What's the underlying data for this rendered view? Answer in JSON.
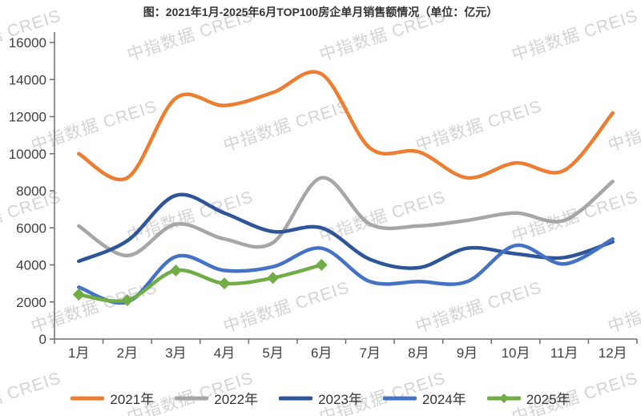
{
  "watermark_text": "中指数据 CREIS",
  "chart_data": {
    "type": "line",
    "title": "图：2021年1月-2025年6月TOP100房企单月销售额情况（单位：亿元）",
    "unit": "亿元",
    "categories": [
      "1月",
      "2月",
      "3月",
      "4月",
      "5月",
      "6月",
      "7月",
      "8月",
      "9月",
      "10月",
      "11月",
      "12月"
    ],
    "ylim": [
      0,
      16000
    ],
    "ytick_step": 2000,
    "grid": false,
    "smooth": true,
    "legend_position": "bottom",
    "series": [
      {
        "name": "2021年",
        "color": "#ED7D31",
        "marker": "none",
        "values": [
          10000,
          8700,
          13000,
          12600,
          13300,
          14300,
          10300,
          10100,
          8700,
          9500,
          9100,
          12200
        ]
      },
      {
        "name": "2022年",
        "color": "#A6A6A6",
        "marker": "none",
        "values": [
          6100,
          4500,
          6200,
          5400,
          5200,
          8700,
          6200,
          6100,
          6400,
          6800,
          6400,
          8500
        ]
      },
      {
        "name": "2023年",
        "color": "#2E5597",
        "marker": "none",
        "values": [
          4200,
          5300,
          7750,
          6800,
          5800,
          6000,
          4300,
          3850,
          4900,
          4600,
          4400,
          5250
        ]
      },
      {
        "name": "2024年",
        "color": "#4472C4",
        "marker": "none",
        "values": [
          2800,
          2000,
          4450,
          3700,
          3900,
          4900,
          3100,
          3100,
          3100,
          5050,
          4050,
          5400
        ]
      },
      {
        "name": "2025年",
        "color": "#70AD47",
        "marker": "diamond",
        "values": [
          2400,
          2100,
          3700,
          3000,
          3300,
          4000
        ]
      }
    ]
  }
}
